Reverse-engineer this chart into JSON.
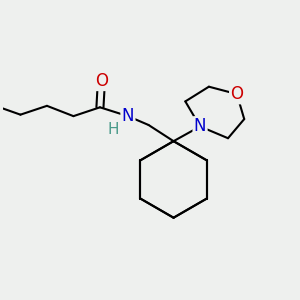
{
  "background_color": "#eef0ee",
  "atom_colors": {
    "C": "#000000",
    "N": "#0000cc",
    "O": "#cc0000",
    "H": "#4a9a8a"
  },
  "bond_color": "#000000",
  "bond_width": 1.5,
  "figsize": [
    3.0,
    3.0
  ],
  "dpi": 100,
  "xlim": [
    0,
    10
  ],
  "ylim": [
    0,
    10
  ]
}
